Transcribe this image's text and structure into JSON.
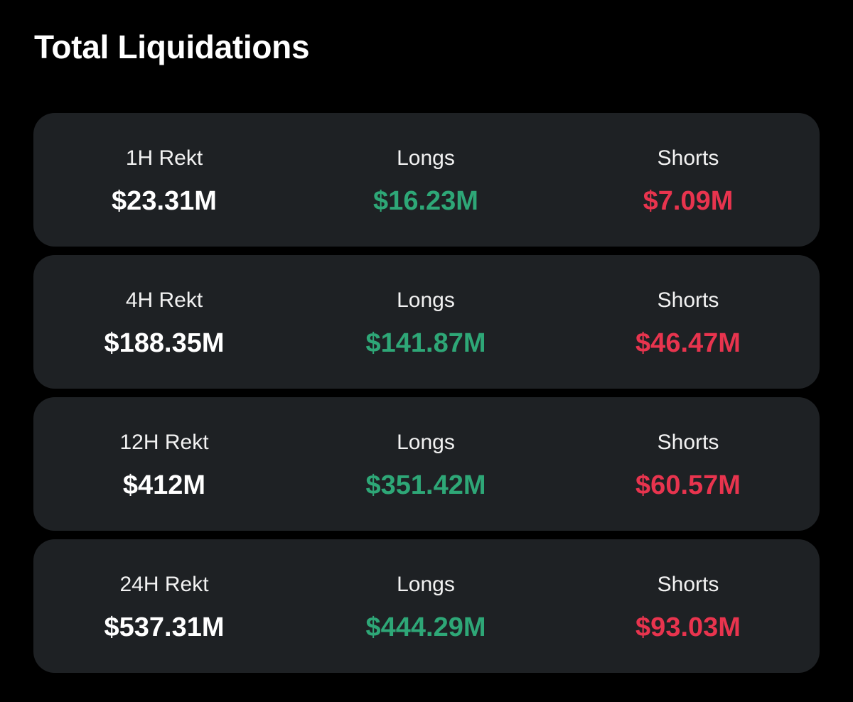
{
  "title": "Total Liquidations",
  "colors": {
    "background": "#000000",
    "card": "#1e2124",
    "longs": "#2ea777",
    "shorts": "#e8344e",
    "total": "#ffffff"
  },
  "rows": [
    {
      "period_label": "1H Rekt",
      "total": "$23.31M",
      "longs_label": "Longs",
      "longs": "$16.23M",
      "shorts_label": "Shorts",
      "shorts": "$7.09M"
    },
    {
      "period_label": "4H Rekt",
      "total": "$188.35M",
      "longs_label": "Longs",
      "longs": "$141.87M",
      "shorts_label": "Shorts",
      "shorts": "$46.47M"
    },
    {
      "period_label": "12H Rekt",
      "total": "$412M",
      "longs_label": "Longs",
      "longs": "$351.42M",
      "shorts_label": "Shorts",
      "shorts": "$60.57M"
    },
    {
      "period_label": "24H Rekt",
      "total": "$537.31M",
      "longs_label": "Longs",
      "longs": "$444.29M",
      "shorts_label": "Shorts",
      "shorts": "$93.03M"
    }
  ]
}
